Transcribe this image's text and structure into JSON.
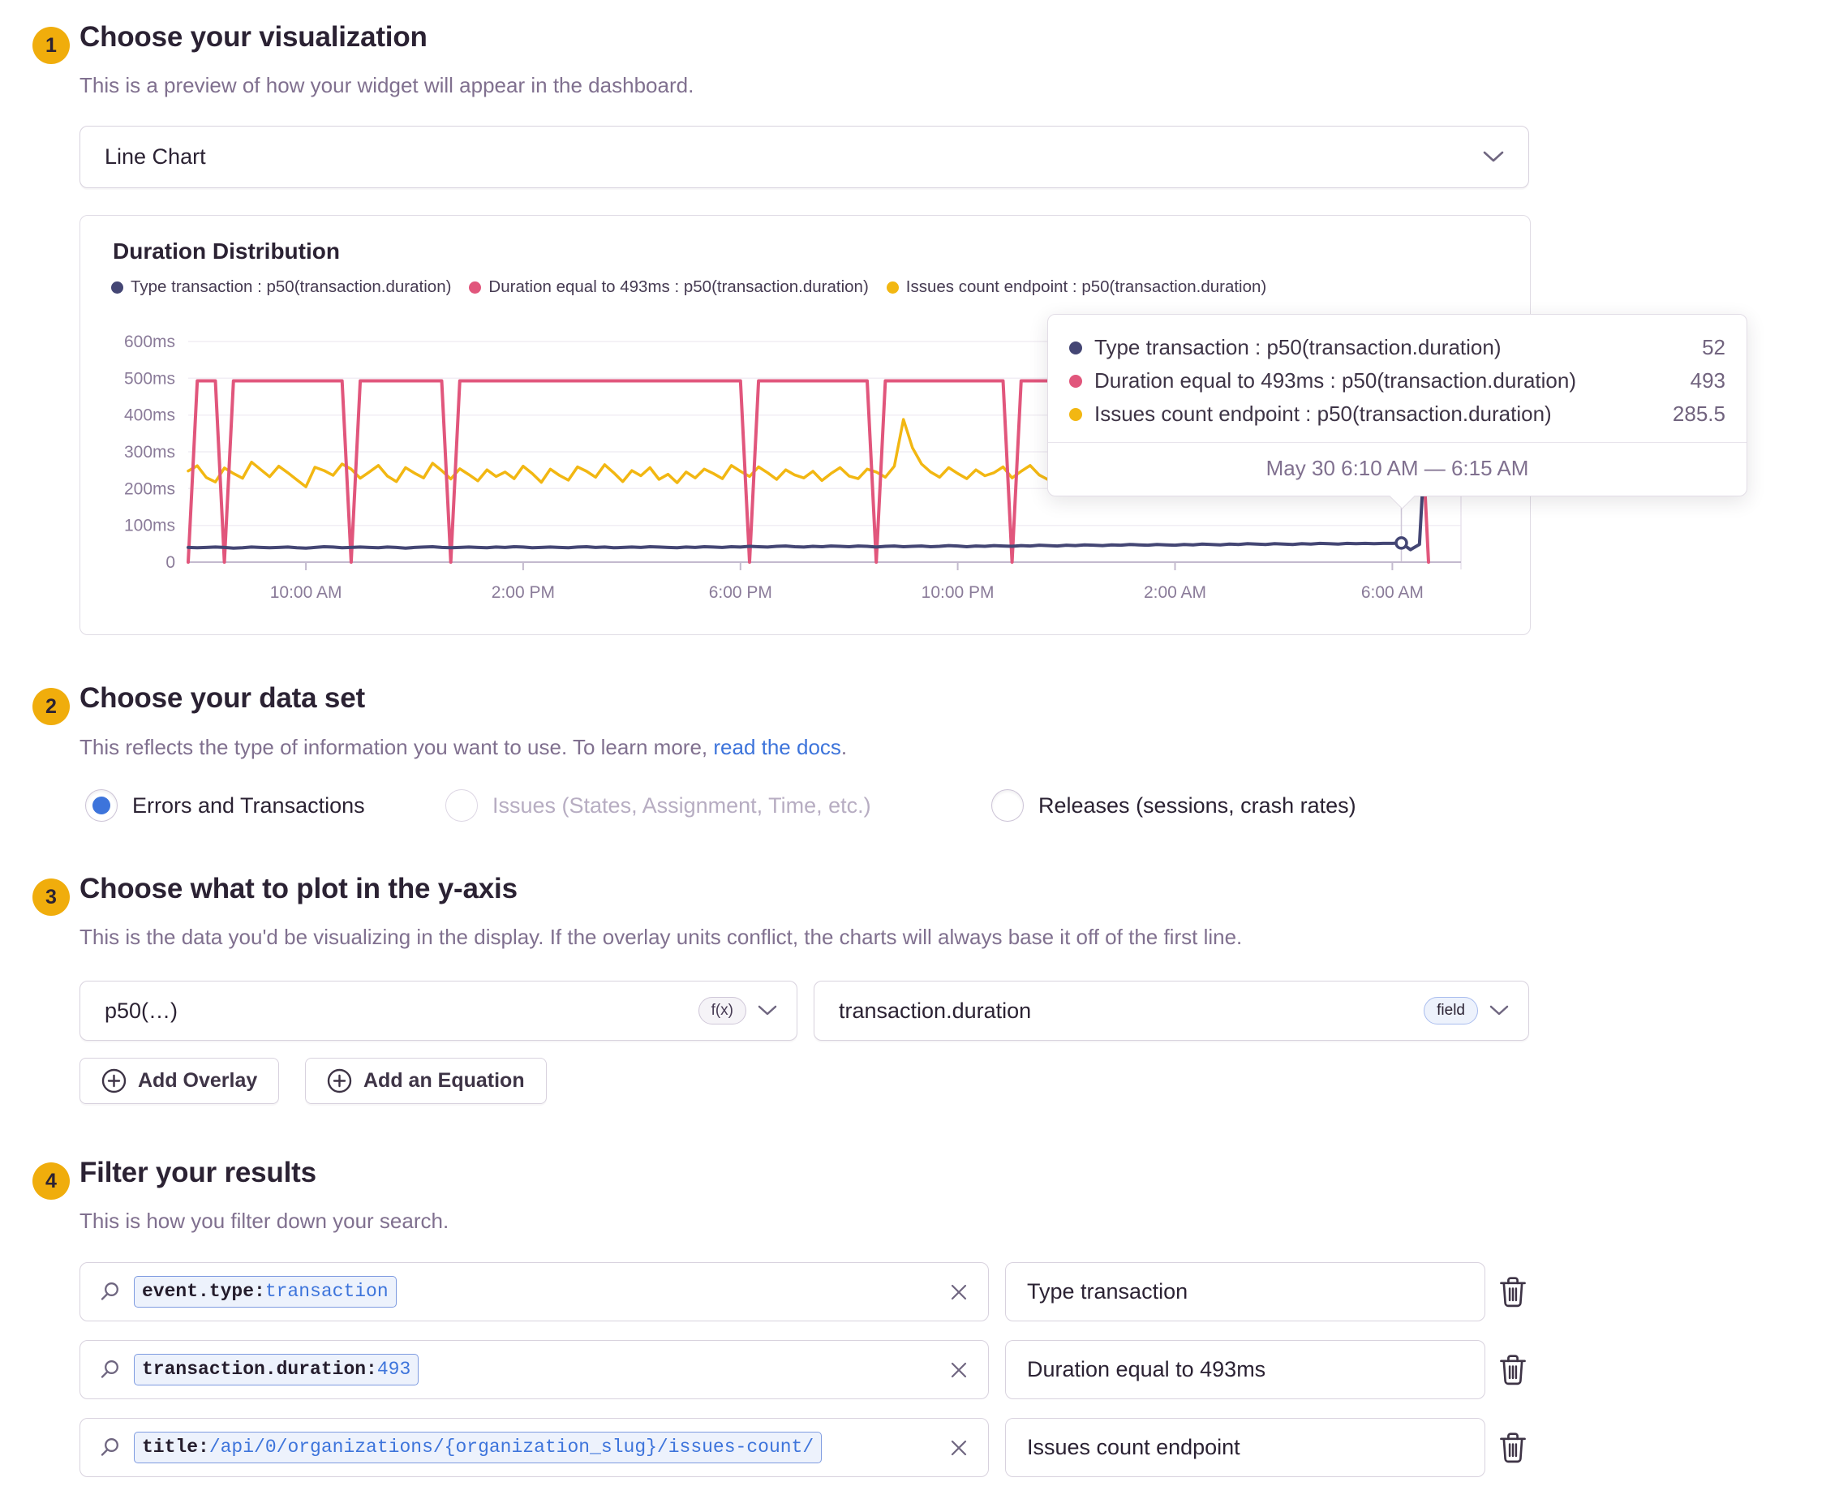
{
  "step1": {
    "number": "1",
    "title": "Choose your visualization",
    "subtitle": "This is a preview of how your widget will appear in the dashboard."
  },
  "visualization": {
    "selected": "Line Chart"
  },
  "step2": {
    "number": "2",
    "title": "Choose your data set",
    "subtitle_text": "This reflects the type of information you want to use. To learn more, ",
    "subtitle_link": "read the docs",
    "subtitle_end": "."
  },
  "dataset": {
    "options": [
      {
        "label": "Errors and Transactions",
        "state": "selected"
      },
      {
        "label": "Issues (States, Assignment, Time, etc.)",
        "state": "disabled"
      },
      {
        "label": "Releases (sessions, crash rates)",
        "state": "default"
      }
    ]
  },
  "step3": {
    "number": "3",
    "title": "Choose what to plot in the y-axis",
    "subtitle": "This is the data you'd be visualizing in the display. If the overlay units conflict, the charts will always base it off of the first line."
  },
  "yaxis": {
    "function_value": "p50(…)",
    "function_tag": "f(x)",
    "field_value": "transaction.duration",
    "field_tag": "field",
    "add_overlay_label": "Add Overlay",
    "add_equation_label": "Add an Equation"
  },
  "step4": {
    "number": "4",
    "title": "Filter your results",
    "subtitle": "This is how you filter down your search."
  },
  "filters": [
    {
      "query_key": "event.type:",
      "query_value": "transaction",
      "alias": "Type transaction"
    },
    {
      "query_key": "transaction.duration:",
      "query_value": "493",
      "alias": "Duration equal to 493ms"
    },
    {
      "query_key": "title:",
      "query_value": "/api/0/organizations/{organization_slug}/issues-count/",
      "alias": "Issues count endpoint"
    }
  ],
  "colors": {
    "accent_blue": "#3D74DB",
    "badge_yellow": "#F0AD0C",
    "heading_text": "#2B2233",
    "muted_text": "#80708F",
    "border": "#D8D2DE"
  },
  "chart_data": {
    "type": "line",
    "title": "Duration Distribution",
    "xlabel": "",
    "ylabel": "",
    "ylim": [
      0,
      600
    ],
    "ytick_values": [
      0,
      100,
      200,
      300,
      400,
      500,
      600
    ],
    "ytick_labels": [
      "0",
      "100ms",
      "200ms",
      "300ms",
      "400ms",
      "500ms",
      "600ms"
    ],
    "xtick_labels": [
      "10:00 AM",
      "2:00 PM",
      "6:00 PM",
      "10:00 PM",
      "2:00 AM",
      "6:00 AM"
    ],
    "xtick_indices": [
      13,
      37,
      61,
      85,
      109,
      133
    ],
    "grid": "horizontal",
    "legend_position": "top-left",
    "series": [
      {
        "name": "Type transaction : p50(transaction.duration)",
        "color": "#444674",
        "values": [
          40,
          39,
          40,
          41,
          40,
          38,
          39,
          41,
          40,
          39,
          40,
          41,
          39,
          38,
          40,
          42,
          41,
          39,
          40,
          41,
          40,
          39,
          41,
          40,
          38,
          40,
          41,
          42,
          40,
          39,
          40,
          41,
          40,
          39,
          41,
          40,
          42,
          41,
          39,
          40,
          41,
          40,
          39,
          41,
          42,
          40,
          41,
          39,
          40,
          41,
          40,
          42,
          41,
          40,
          39,
          41,
          40,
          42,
          41,
          40,
          42,
          41,
          43,
          42,
          41,
          43,
          44,
          42,
          41,
          43,
          42,
          44,
          43,
          42,
          44,
          43,
          41,
          43,
          44,
          42,
          43,
          44,
          42,
          43,
          45,
          44,
          42,
          44,
          43,
          45,
          44,
          43,
          45,
          44,
          46,
          45,
          44,
          46,
          45,
          47,
          46,
          45,
          47,
          46,
          48,
          47,
          46,
          48,
          47,
          46,
          48,
          47,
          49,
          48,
          47,
          49,
          48,
          50,
          49,
          48,
          50,
          49,
          48,
          50,
          49,
          51,
          50,
          49,
          51,
          50,
          51,
          50,
          51,
          51,
          52,
          34,
          48,
          488
        ]
      },
      {
        "name": "Duration equal to 493ms : p50(transaction.duration)",
        "color": "#E1567C",
        "values": [
          0,
          493,
          493,
          493,
          0,
          493,
          493,
          493,
          493,
          493,
          493,
          493,
          493,
          493,
          493,
          493,
          493,
          493,
          0,
          493,
          493,
          493,
          493,
          493,
          493,
          493,
          493,
          493,
          493,
          0,
          493,
          493,
          493,
          493,
          493,
          493,
          493,
          493,
          493,
          493,
          493,
          493,
          493,
          493,
          493,
          493,
          493,
          493,
          493,
          493,
          493,
          493,
          493,
          493,
          493,
          493,
          493,
          493,
          493,
          493,
          493,
          493,
          0,
          493,
          493,
          493,
          493,
          493,
          493,
          493,
          493,
          493,
          493,
          493,
          493,
          493,
          0,
          493,
          493,
          493,
          493,
          493,
          493,
          493,
          493,
          493,
          493,
          493,
          493,
          493,
          493,
          0,
          493,
          493,
          493,
          493,
          493,
          493,
          493,
          493,
          493,
          493,
          493,
          493,
          493,
          493,
          493,
          493,
          493,
          493,
          493,
          493,
          493,
          493,
          493,
          493,
          493,
          493,
          493,
          493,
          493,
          493,
          493,
          493,
          493,
          493,
          493,
          493,
          493,
          493,
          493,
          493,
          493,
          493,
          493,
          493,
          493,
          0
        ]
      },
      {
        "name": "Issues count endpoint : p50(transaction.duration)",
        "color": "#F2B712",
        "values": [
          248,
          262,
          230,
          218,
          256,
          241,
          228,
          272,
          252,
          232,
          261,
          243,
          224,
          205,
          258,
          249,
          236,
          267,
          253,
          228,
          245,
          263,
          234,
          219,
          257,
          242,
          229,
          269,
          249,
          226,
          254,
          238,
          221,
          251,
          233,
          245,
          227,
          261,
          241,
          217,
          253,
          236,
          223,
          259,
          247,
          231,
          265,
          243,
          219,
          249,
          235,
          257,
          225,
          239,
          216,
          245,
          229,
          253,
          241,
          227,
          263,
          247,
          233,
          259,
          243,
          225,
          251,
          237,
          229,
          247,
          222,
          241,
          257,
          234,
          227,
          253,
          245,
          231,
          261,
          388,
          311,
          267,
          245,
          231,
          257,
          241,
          227,
          251,
          235,
          243,
          259,
          229,
          247,
          263,
          237,
          224,
          253,
          239,
          231,
          249,
          233,
          257,
          245,
          229,
          263,
          251,
          237,
          225,
          247,
          259,
          241,
          231,
          253,
          243,
          235,
          261,
          249,
          233,
          257,
          241,
          229,
          251,
          263,
          239,
          227,
          247,
          255,
          237,
          229,
          249,
          235,
          253,
          243,
          231,
          285.5,
          249,
          239,
          247
        ]
      }
    ],
    "tooltip": {
      "hover_index": 134,
      "rows": [
        {
          "label": "Type transaction : p50(transaction.duration)",
          "value": "52"
        },
        {
          "label": "Duration equal to 493ms : p50(transaction.duration)",
          "value": "493"
        },
        {
          "label": "Issues count endpoint : p50(transaction.duration)",
          "value": "285.5"
        }
      ],
      "footer": "May 30 6:10 AM — 6:15 AM"
    }
  }
}
